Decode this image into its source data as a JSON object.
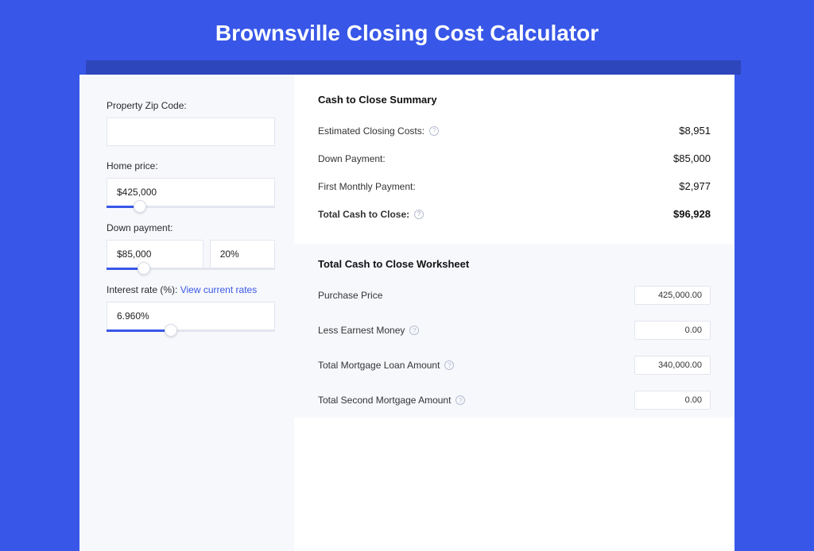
{
  "colors": {
    "page_bg": "#3857e8",
    "shadow_bar": "#2e46bc",
    "card_bg": "#ffffff",
    "panel_bg": "#f7f8fc",
    "border": "#e3e6ef",
    "text": "#111111",
    "link": "#3857e8"
  },
  "title": "Brownsville Closing Cost Calculator",
  "inputs": {
    "zip": {
      "label": "Property Zip Code:",
      "value": ""
    },
    "home_price": {
      "label": "Home price:",
      "value": "$425,000",
      "slider_pct": "20%"
    },
    "down_payment": {
      "label": "Down payment:",
      "value": "$85,000",
      "pct_value": "20%",
      "slider_pct": "22%"
    },
    "interest_rate": {
      "label": "Interest rate (%):",
      "link_text": "View current rates",
      "value": "6.960%",
      "slider_pct": "38%"
    }
  },
  "summary": {
    "title": "Cash to Close Summary",
    "rows": [
      {
        "label": "Estimated Closing Costs:",
        "help": true,
        "value": "$8,951",
        "bold": false
      },
      {
        "label": "Down Payment:",
        "help": false,
        "value": "$85,000",
        "bold": false
      },
      {
        "label": "First Monthly Payment:",
        "help": false,
        "value": "$2,977",
        "bold": false
      },
      {
        "label": "Total Cash to Close:",
        "help": true,
        "value": "$96,928",
        "bold": true
      }
    ]
  },
  "worksheet": {
    "title": "Total Cash to Close Worksheet",
    "rows": [
      {
        "label": "Purchase Price",
        "help": false,
        "value": "425,000.00"
      },
      {
        "label": "Less Earnest Money",
        "help": true,
        "value": "0.00"
      },
      {
        "label": "Total Mortgage Loan Amount",
        "help": true,
        "value": "340,000.00"
      },
      {
        "label": "Total Second Mortgage Amount",
        "help": true,
        "value": "0.00"
      }
    ]
  }
}
